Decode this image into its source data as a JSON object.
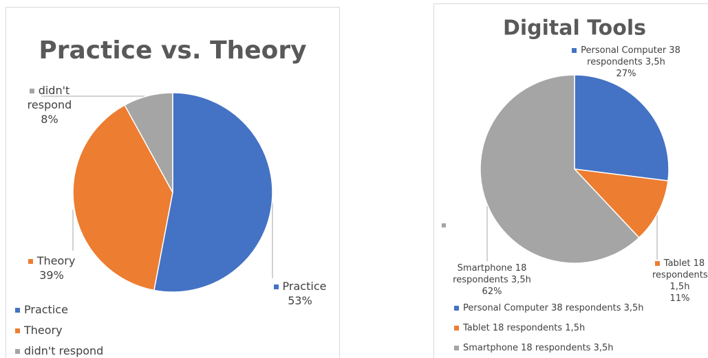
{
  "chart_data": [
    {
      "type": "pie",
      "title": "Practice vs. Theory",
      "categories": [
        "Practice",
        "Theory",
        "didn't respond"
      ],
      "values": [
        53,
        39,
        8
      ],
      "value_labels": [
        "53%",
        "39%",
        "8%"
      ],
      "colors": [
        "#4472c4",
        "#ed7d31",
        "#a5a5a5"
      ],
      "legend": "bottom-left"
    },
    {
      "type": "pie",
      "title": "Digital Tools",
      "categories": [
        "Personal Computer 38 respondents 3,5h",
        "Tablet 18 respondents 1,5h",
        "Smartphone 18 respondents 3,5h"
      ],
      "values": [
        27,
        11,
        62
      ],
      "value_labels": [
        "27%",
        "11%",
        "62%"
      ],
      "colors": [
        "#4472c4",
        "#ed7d31",
        "#a5a5a5"
      ],
      "legend": "bottom-left"
    }
  ]
}
